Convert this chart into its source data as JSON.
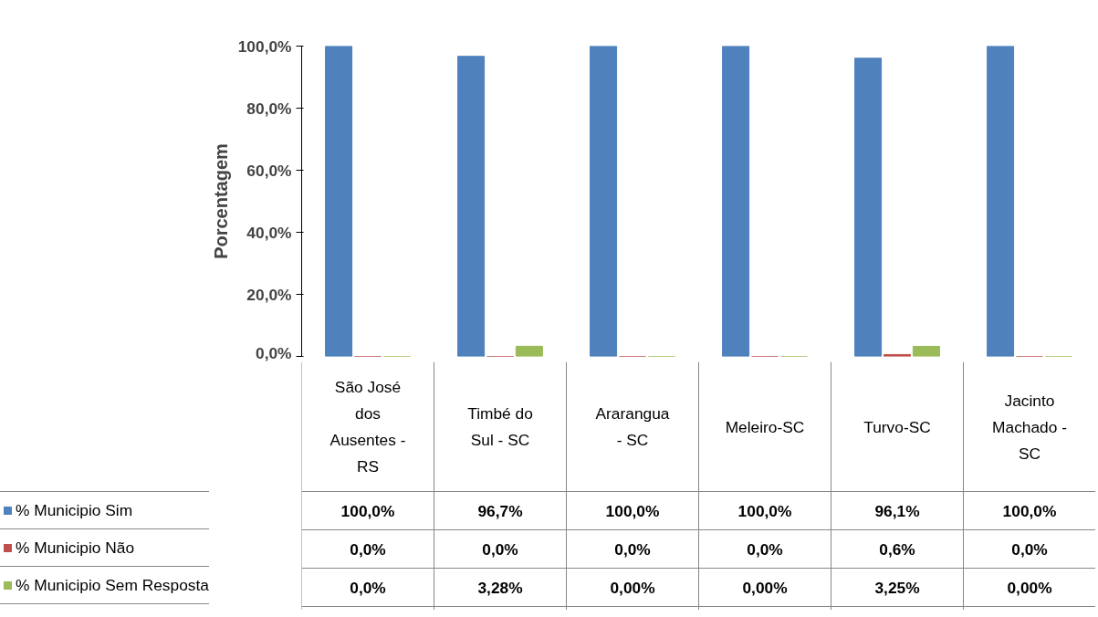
{
  "chart_data": {
    "type": "bar",
    "ylabel": "Porcentagem",
    "categories": [
      "São José dos Ausentes - RS",
      "Timbé do Sul - SC",
      "Ararangua - SC",
      "Meleiro-SC",
      "Turvo-SC",
      "Jacinto Machado - SC"
    ],
    "series": [
      {
        "name": "% Municipio Sim",
        "color": "#4f81bd",
        "values": [
          100,
          96.7,
          100,
          100,
          96.1,
          100
        ],
        "value_labels": [
          "100,0%",
          "96,7%",
          "100,0%",
          "100,0%",
          "96,1%",
          "100,0%"
        ]
      },
      {
        "name": "% Municipio Não",
        "color": "#c0504d",
        "values": [
          0,
          0,
          0,
          0,
          0.6,
          0
        ],
        "value_labels": [
          "0,0%",
          "0,0%",
          "0,0%",
          "0,0%",
          "0,6%",
          "0,0%"
        ]
      },
      {
        "name": "% Municipio Sem Resposta",
        "color": "#9bbb59",
        "values": [
          0,
          3.28,
          0,
          0,
          3.25,
          0
        ],
        "value_labels": [
          "0,0%",
          "3,28%",
          "0,00%",
          "0,00%",
          "3,25%",
          "0,00%"
        ]
      }
    ],
    "ylim": [
      0,
      100
    ],
    "yticks": [
      {
        "value": 0,
        "label": "0,0%"
      },
      {
        "value": 20,
        "label": "20,0%"
      },
      {
        "value": 40,
        "label": "40,0%"
      },
      {
        "value": 60,
        "label": "60,0%"
      },
      {
        "value": 80,
        "label": "80,0%"
      },
      {
        "value": 100,
        "label": "100,0%"
      }
    ],
    "grid": false,
    "legend": "bottom"
  }
}
